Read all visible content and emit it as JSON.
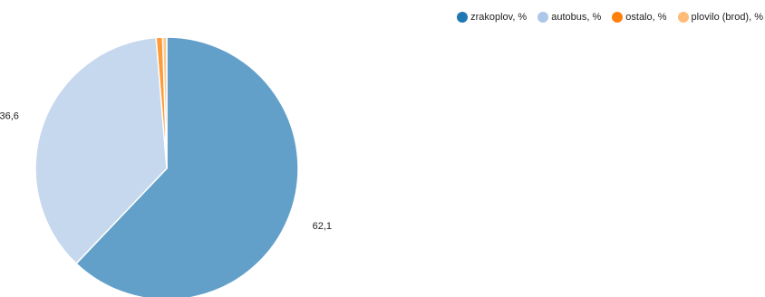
{
  "chart_data": {
    "type": "pie",
    "title": "",
    "legend_position": "top-right",
    "series": [
      {
        "name": "zrakoplov, %",
        "value": 62.1,
        "label": "62,1",
        "color": "#62a0ca",
        "legend_color": "#1f77b4"
      },
      {
        "name": "autobus, %",
        "value": 36.6,
        "label": "36,6",
        "color": "#c6d8ee",
        "legend_color": "#aec7e8"
      },
      {
        "name": "ostalo, %",
        "value": 0.8,
        "label": "",
        "color": "#ff9b3a",
        "legend_color": "#ff7f0e"
      },
      {
        "name": "plovilo (brod), %",
        "value": 0.5,
        "label": "",
        "color": "#ffc98e",
        "legend_color": "#ffbb78"
      }
    ]
  }
}
